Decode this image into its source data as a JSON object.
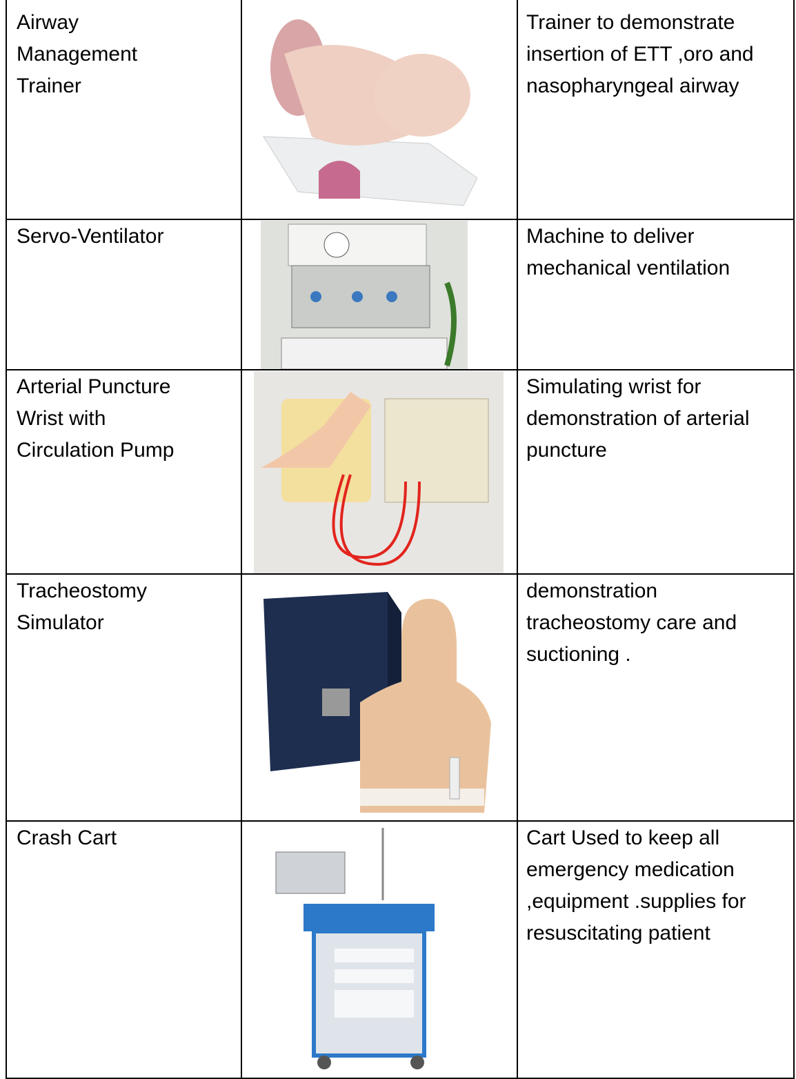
{
  "table": {
    "rows": [
      {
        "name": [
          "Airway",
          "Management",
          "Trainer"
        ],
        "description": [
          "Trainer to demonstrate",
          "insertion of ETT ,oro and",
          "nasopharyngeal airway"
        ]
      },
      {
        "name": [
          "Servo-Ventilator"
        ],
        "description": [
          "Machine to deliver",
          "mechanical ventilation"
        ]
      },
      {
        "name": [
          "Arterial Puncture",
          "Wrist with",
          "Circulation Pump"
        ],
        "description": [
          "Simulating wrist for",
          "demonstration of arterial",
          "puncture"
        ]
      },
      {
        "name": [
          "Tracheostomy",
          "Simulator"
        ],
        "description": [
          "demonstration",
          "tracheostomy care and",
          "suctioning ."
        ]
      },
      {
        "name": [
          "Crash Cart"
        ],
        "description": [
          "Cart Used to keep all",
          "emergency medication",
          ",equipment .supplies for",
          "resuscitating patient"
        ]
      }
    ]
  }
}
